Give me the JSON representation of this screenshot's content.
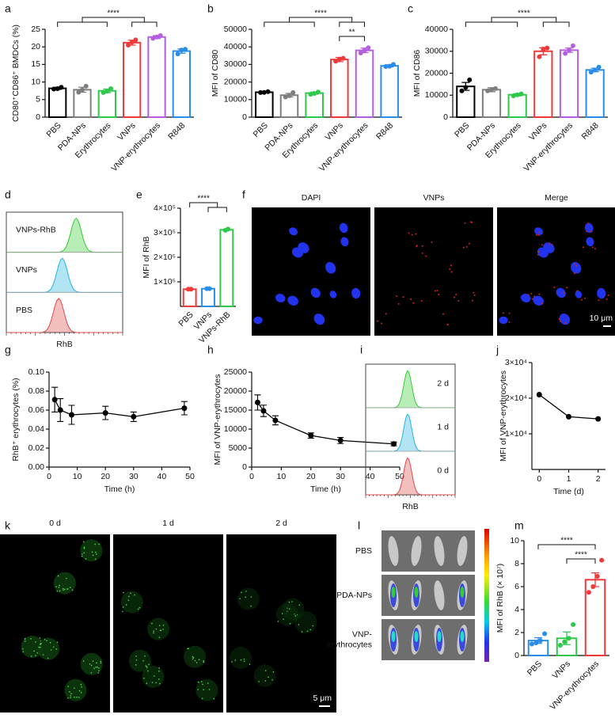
{
  "chart_data": [
    {
      "type": "bar",
      "panel": "a",
      "ylabel": "CD80⁺CD86⁺ BMDCs (%)",
      "categories": [
        "PBS",
        "PDA-NPs",
        "Erythrocytes",
        "VNPs",
        "VNP-erythrocytes",
        "R848"
      ],
      "values": [
        8.2,
        7.8,
        7.5,
        21.2,
        22.8,
        18.8
      ],
      "errors": [
        0.3,
        0.7,
        0.5,
        0.7,
        0.4,
        0.6
      ],
      "points": [
        [
          8.0,
          8.1,
          8.5
        ],
        [
          7.1,
          7.8,
          8.8
        ],
        [
          7.0,
          7.4,
          8.1
        ],
        [
          20.5,
          21.3,
          22.0
        ],
        [
          22.4,
          22.8,
          23.2
        ],
        [
          18.0,
          19.1,
          19.3
        ]
      ],
      "colors": [
        "#000000",
        "#7f7f7f",
        "#2fc84a",
        "#f03a3a",
        "#b45ee0",
        "#2a8de8"
      ],
      "ylim": [
        0,
        25
      ],
      "yticks": [
        0,
        5,
        10,
        15,
        20,
        25
      ],
      "annotations": [
        "****"
      ]
    },
    {
      "type": "bar",
      "panel": "b",
      "ylabel": "MFI of CD80",
      "categories": [
        "PBS",
        "PDA-NPs",
        "Erythrocytes",
        "VNPs",
        "VNP-erythrocytes",
        "R848"
      ],
      "values": [
        14200,
        12500,
        13700,
        32800,
        38000,
        29200
      ],
      "errors": [
        400,
        1000,
        600,
        1200,
        1300,
        600
      ],
      "points": [
        [
          14000,
          14100,
          14500
        ],
        [
          11500,
          12200,
          14000
        ],
        [
          13000,
          13500,
          14300
        ],
        [
          31800,
          33000,
          33500
        ],
        [
          36500,
          38000,
          39500
        ],
        [
          28800,
          29000,
          30000
        ]
      ],
      "colors": [
        "#000000",
        "#7f7f7f",
        "#2fc84a",
        "#f03a3a",
        "#b45ee0",
        "#2a8de8"
      ],
      "ylim": [
        0,
        50000
      ],
      "yticks": [
        0,
        10000,
        20000,
        30000,
        40000,
        50000
      ],
      "annotations": [
        "****",
        "**"
      ]
    },
    {
      "type": "bar",
      "panel": "c",
      "ylabel": "MFI of CD86",
      "categories": [
        "PBS",
        "PDA-NPs",
        "Erythrocytes",
        "VNPs",
        "VNP-erythrocytes",
        "R848"
      ],
      "values": [
        14000,
        12500,
        10200,
        30000,
        30500,
        21500
      ],
      "errors": [
        1800,
        900,
        500,
        1600,
        1000,
        800
      ],
      "points": [
        [
          12000,
          13500,
          17000
        ],
        [
          12000,
          12500,
          13000
        ],
        [
          9700,
          10200,
          10600
        ],
        [
          27500,
          31000,
          31500
        ],
        [
          29000,
          30500,
          32500
        ],
        [
          20500,
          21500,
          22800
        ]
      ],
      "colors": [
        "#000000",
        "#7f7f7f",
        "#2fc84a",
        "#f03a3a",
        "#b45ee0",
        "#2a8de8"
      ],
      "ylim": [
        0,
        40000
      ],
      "yticks": [
        0,
        10000,
        20000,
        30000,
        40000
      ],
      "annotations": [
        "****"
      ]
    },
    {
      "type": "bar",
      "panel": "e",
      "ylabel": "MFI of RhB",
      "categories": [
        "PBS",
        "VNPs",
        "VNPs-RhB"
      ],
      "values": [
        70000,
        72000,
        312000
      ],
      "points": [
        [
          70000,
          70000
        ],
        [
          72000,
          72000
        ],
        [
          310000,
          315000
        ]
      ],
      "colors": [
        "#f03a3a",
        "#2a8de8",
        "#2fc84a"
      ],
      "ylim": [
        0,
        400000
      ],
      "yticks": [
        {
          "value": 100000,
          "label": "1×10⁵"
        },
        {
          "value": 200000,
          "label": "2×10⁵"
        },
        {
          "value": 300000,
          "label": "3×10⁵"
        },
        {
          "value": 400000,
          "label": "4×10⁵"
        }
      ],
      "annotations": [
        "****"
      ]
    },
    {
      "type": "line",
      "panel": "g",
      "xlabel": "Time (h)",
      "ylabel": "RhB⁺ erythrocytes (%)",
      "x": [
        2,
        4,
        8,
        20,
        30,
        48
      ],
      "values": [
        0.071,
        0.06,
        0.055,
        0.057,
        0.053,
        0.062
      ],
      "errors": [
        0.013,
        0.012,
        0.01,
        0.007,
        0.005,
        0.007
      ],
      "color": "#000000",
      "xlim": [
        0,
        50
      ],
      "xticks": [
        0,
        10,
        20,
        30,
        40,
        50
      ],
      "ylim": [
        0,
        0.1
      ],
      "yticks": [
        {
          "value": 0,
          "label": "0.00"
        },
        0.02,
        0.04,
        0.06,
        0.08,
        {
          "value": 0.1,
          "label": "0.10"
        }
      ]
    },
    {
      "type": "line",
      "panel": "h",
      "xlabel": "Time (h)",
      "ylabel": "MFI of VNP-erythrocytes",
      "x": [
        2,
        4,
        8,
        20,
        30,
        48
      ],
      "values": [
        17000,
        14800,
        12300,
        8300,
        7000,
        6100
      ],
      "errors": [
        2000,
        1500,
        1200,
        700,
        800,
        500
      ],
      "color": "#000000",
      "xlim": [
        0,
        50
      ],
      "xticks": [
        0,
        10,
        20,
        30,
        40,
        50
      ],
      "ylim": [
        0,
        25000
      ],
      "yticks": [
        0,
        5000,
        10000,
        15000,
        20000,
        25000
      ]
    },
    {
      "type": "line",
      "panel": "j",
      "xlabel": "Time (d)",
      "ylabel": "MFI of VNP-erythrocytes",
      "x": [
        0,
        1,
        2
      ],
      "values": [
        21000,
        14800,
        14200
      ],
      "color": "#000000",
      "xlim": [
        -0.25,
        2.25
      ],
      "xticks": [
        0,
        1,
        2
      ],
      "ylim": [
        0,
        30000
      ],
      "yticks": [
        {
          "value": 10000,
          "label": "1×10⁴"
        },
        {
          "value": 20000,
          "label": "2×10⁴"
        },
        {
          "value": 30000,
          "label": "3×10⁴"
        }
      ]
    },
    {
      "type": "bar",
      "panel": "m",
      "ylabel": "MFI of RhB (× 10⁷)",
      "categories": [
        "PBS",
        "VNPs",
        "VNP-erythrocytes"
      ],
      "values": [
        1.3,
        1.5,
        6.6
      ],
      "errors": [
        0.25,
        0.55,
        0.6
      ],
      "points": [
        [
          1.0,
          1.1,
          1.3,
          1.9
        ],
        [
          0.9,
          1.2,
          1.5,
          2.7
        ],
        [
          5.5,
          6.0,
          6.9,
          8.3
        ]
      ],
      "colors": [
        "#2a8de8",
        "#2fc84a",
        "#f03a3a"
      ],
      "ylim": [
        0,
        10
      ],
      "yticks": [
        0,
        2,
        4,
        6,
        8,
        10
      ],
      "annotations": [
        "****",
        "****"
      ]
    }
  ],
  "flow_panels": [
    {
      "panel": "d",
      "tracks": [
        "VNPs-RhB",
        "VNPs",
        "PBS"
      ],
      "colors": [
        "#33cc33",
        "#22b4e0",
        "#e04848"
      ],
      "xlabel": "RhB"
    },
    {
      "panel": "i",
      "tracks": [
        "2 d",
        "1 d",
        "0 d"
      ],
      "colors": [
        "#33cc33",
        "#22b4e0",
        "#e04848"
      ],
      "xlabel": "RhB"
    }
  ],
  "image_panels": [
    {
      "panel": "f",
      "titles": [
        "DAPI",
        "VNPs",
        "Merge"
      ],
      "scale_bar": "10 μm"
    },
    {
      "panel": "k",
      "titles": [
        "0 d",
        "1 d",
        "2 d"
      ],
      "scale_bar": "5 μm"
    },
    {
      "panel": "l",
      "rows": [
        [
          "PBS"
        ],
        [
          "PDA-NPs"
        ],
        [
          "VNP-",
          "erythrocytes"
        ]
      ]
    }
  ]
}
